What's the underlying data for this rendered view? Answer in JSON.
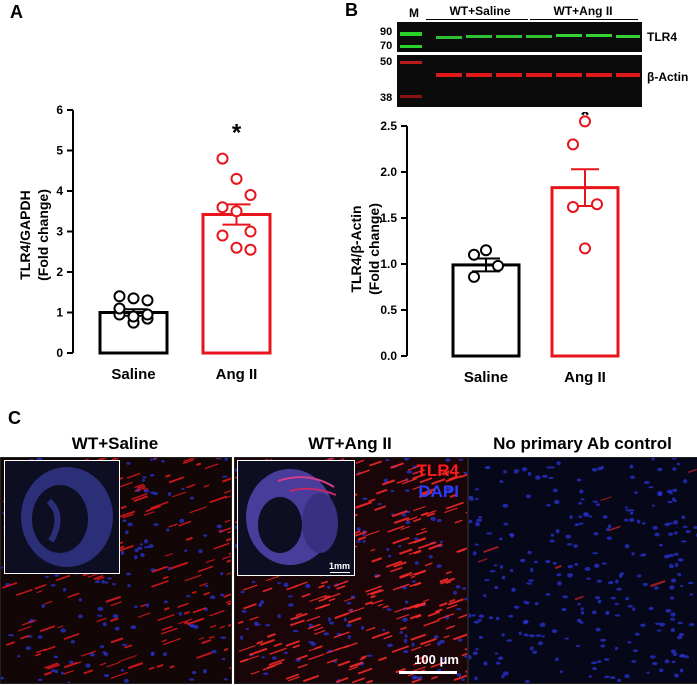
{
  "panel_labels": {
    "a": "A",
    "b": "B",
    "c": "C"
  },
  "chart_data": [
    {
      "type": "bar",
      "panel": "A",
      "categories": [
        "Saline",
        "Ang II"
      ],
      "values": [
        1.0,
        3.42
      ],
      "errors": [
        0.08,
        0.25
      ],
      "colors": [
        "#000000",
        "#e8141c"
      ],
      "points": [
        [
          0.95,
          1.35,
          1.3,
          1.4,
          0.75,
          0.85,
          1.1,
          0.9,
          0.95
        ],
        [
          4.8,
          4.3,
          3.9,
          3.6,
          3.5,
          3.0,
          2.9,
          2.6,
          2.55
        ]
      ],
      "ylabel": "TLR4/GAPDH",
      "ylabel2": "(Fold change)",
      "ylim": [
        0,
        6
      ],
      "yticks": [
        "0",
        "1",
        "2",
        "3",
        "4",
        "5",
        "6"
      ],
      "significance": "*"
    },
    {
      "type": "bar",
      "panel": "B",
      "categories": [
        "Saline",
        "Ang II"
      ],
      "values": [
        0.99,
        1.83
      ],
      "errors": [
        0.07,
        0.2
      ],
      "colors": [
        "#000000",
        "#e8141c"
      ],
      "points": [
        [
          1.1,
          1.15,
          0.98,
          0.86
        ],
        [
          2.3,
          2.55,
          1.65,
          1.62,
          1.17
        ]
      ],
      "ylabel": "TLR4/β-Actin",
      "ylabel2": "(Fold change)",
      "ylim": [
        0,
        2.5
      ],
      "yticks": [
        "0.0",
        "0.5",
        "1.0",
        "1.5",
        "2.0",
        "2.5"
      ],
      "significance": "*"
    }
  ],
  "blot": {
    "marker_label": "M",
    "group1": "WT+Saline",
    "group2": "WT+Ang II",
    "protein1": "TLR4",
    "protein2": "β-Actin",
    "mw_top": [
      "90",
      "70"
    ],
    "mw_bottom": [
      "50",
      "38"
    ]
  },
  "micrographs": {
    "title1": "WT+Saline",
    "title2": "WT+Ang II",
    "title3": "No primary Ab control",
    "legend_tlr4": "TLR4",
    "legend_dapi": "DAPI",
    "inset_scale": "1mm",
    "scale_bar": "100 μm",
    "tlr4_color": "#ff1a1a",
    "dapi_color": "#2c3cff"
  }
}
